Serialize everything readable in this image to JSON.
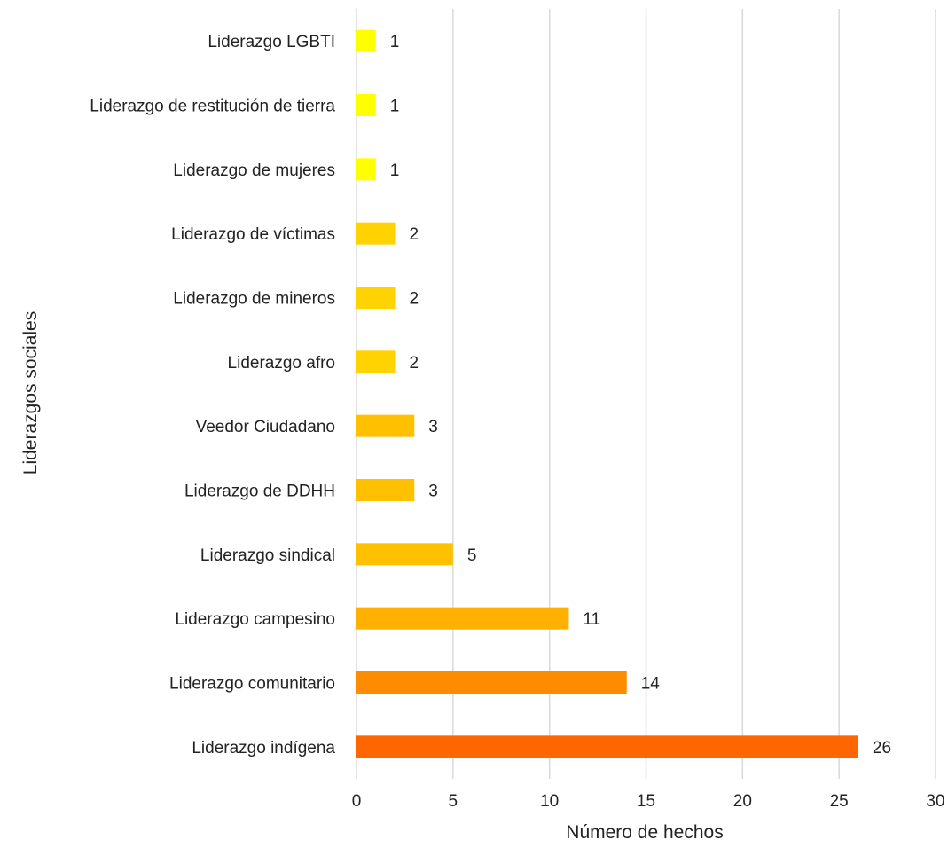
{
  "chart_data": {
    "type": "bar",
    "orientation": "horizontal",
    "xlabel": "Número de hechos",
    "ylabel": "Liderazgos sociales",
    "xlim": [
      0,
      30
    ],
    "xticks": [
      "0",
      "5",
      "10",
      "15",
      "20",
      "25",
      "30"
    ],
    "grid": "vertical",
    "data_labels": true,
    "categories": [
      "Liderazgo LGBTI",
      "Liderazgo de restitución de tierra",
      "Liderazgo de mujeres",
      "Liderazgo de víctimas",
      "Liderazgo de mineros",
      "Liderazgo afro",
      "Veedor Ciudadano",
      "Liderazgo de DDHH",
      "Liderazgo sindical",
      "Liderazgo campesino",
      "Liderazgo comunitario",
      "Liderazgo indígena"
    ],
    "values": [
      1,
      1,
      1,
      2,
      2,
      2,
      3,
      3,
      5,
      11,
      14,
      26
    ],
    "colors": [
      "#ffff00",
      "#ffff00",
      "#ffff00",
      "#ffd200",
      "#ffd200",
      "#ffd200",
      "#ffc000",
      "#ffc000",
      "#ffc000",
      "#ffb000",
      "#ff8c00",
      "#ff6600"
    ]
  }
}
